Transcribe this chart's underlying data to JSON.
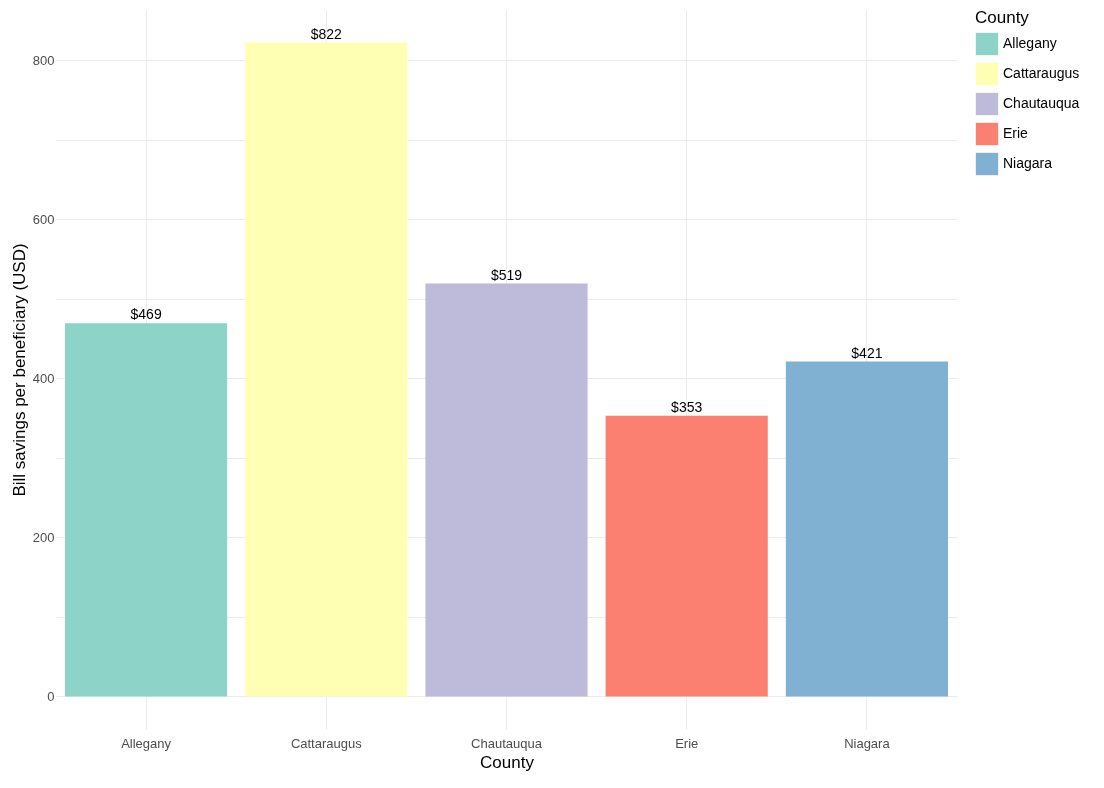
{
  "chart_data": {
    "type": "bar",
    "xlabel": "County",
    "ylabel": "Bill savings per beneficiary (USD)",
    "legend_title": "County",
    "legend": "right",
    "grid": true,
    "categories": [
      "Allegany",
      "Cattaraugus",
      "Chautauqua",
      "Erie",
      "Niagara"
    ],
    "series": [
      {
        "name": "Allegany",
        "color": "#8dd3c7",
        "values": [
          469,
          null,
          null,
          null,
          null
        ],
        "value_labels": [
          "$469",
          null,
          null,
          null,
          null
        ]
      },
      {
        "name": "Cattaraugus",
        "color": "#ffffb3",
        "values": [
          null,
          822,
          null,
          null,
          null
        ],
        "value_labels": [
          null,
          "$822",
          null,
          null,
          null
        ]
      },
      {
        "name": "Chautauqua",
        "color": "#bebada",
        "values": [
          null,
          null,
          519,
          null,
          null
        ],
        "value_labels": [
          null,
          null,
          "$519",
          null,
          null
        ]
      },
      {
        "name": "Erie",
        "color": "#fb8072",
        "values": [
          null,
          null,
          null,
          353,
          null
        ],
        "value_labels": [
          null,
          null,
          null,
          "$353",
          null
        ]
      },
      {
        "name": "Niagara",
        "color": "#80b1d3",
        "values": [
          null,
          null,
          null,
          null,
          421
        ],
        "value_labels": [
          null,
          null,
          null,
          null,
          "$421"
        ]
      }
    ],
    "ylim": [
      -41,
      863
    ],
    "yticks": [
      0,
      {
        "value": 100,
        "label": null
      },
      200,
      {
        "value": 300,
        "label": null
      },
      400,
      {
        "value": 500,
        "label": null
      },
      600,
      {
        "value": 700,
        "label": null
      },
      800
    ]
  }
}
